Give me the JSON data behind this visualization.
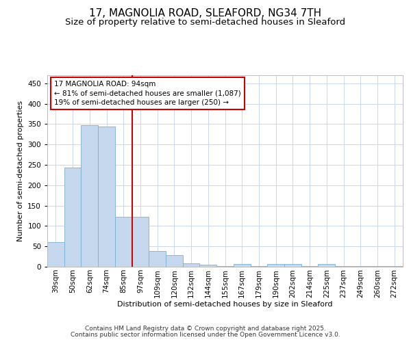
{
  "title_line1": "17, MAGNOLIA ROAD, SLEAFORD, NG34 7TH",
  "title_line2": "Size of property relative to semi-detached houses in Sleaford",
  "xlabel": "Distribution of semi-detached houses by size in Sleaford",
  "ylabel": "Number of semi-detached properties",
  "categories": [
    "39sqm",
    "50sqm",
    "62sqm",
    "74sqm",
    "85sqm",
    "97sqm",
    "109sqm",
    "120sqm",
    "132sqm",
    "144sqm",
    "155sqm",
    "167sqm",
    "179sqm",
    "190sqm",
    "202sqm",
    "214sqm",
    "225sqm",
    "237sqm",
    "249sqm",
    "260sqm",
    "272sqm"
  ],
  "values": [
    60,
    243,
    348,
    344,
    122,
    122,
    38,
    28,
    9,
    5,
    1,
    6,
    1,
    6,
    6,
    1,
    7,
    1,
    1,
    1,
    1
  ],
  "bar_color": "#c5d8ed",
  "bar_edge_color": "#7aafd4",
  "vline_color": "#cc0000",
  "vline_position": 4.5,
  "annotation_title": "17 MAGNOLIA ROAD: 94sqm",
  "annotation_line1": "← 81% of semi-detached houses are smaller (1,087)",
  "annotation_line2": "19% of semi-detached houses are larger (250) →",
  "annotation_box_color": "#cc0000",
  "annotation_bg": "#ffffff",
  "ylim": [
    0,
    470
  ],
  "yticks": [
    0,
    50,
    100,
    150,
    200,
    250,
    300,
    350,
    400,
    450
  ],
  "footer_line1": "Contains HM Land Registry data © Crown copyright and database right 2025.",
  "footer_line2": "Contains public sector information licensed under the Open Government Licence v3.0.",
  "background_color": "#ffffff",
  "grid_color": "#c8d8e8",
  "title_fontsize": 11,
  "subtitle_fontsize": 9.5,
  "axis_label_fontsize": 8,
  "tick_fontsize": 7.5,
  "annotation_fontsize": 7.5,
  "footer_fontsize": 6.5
}
